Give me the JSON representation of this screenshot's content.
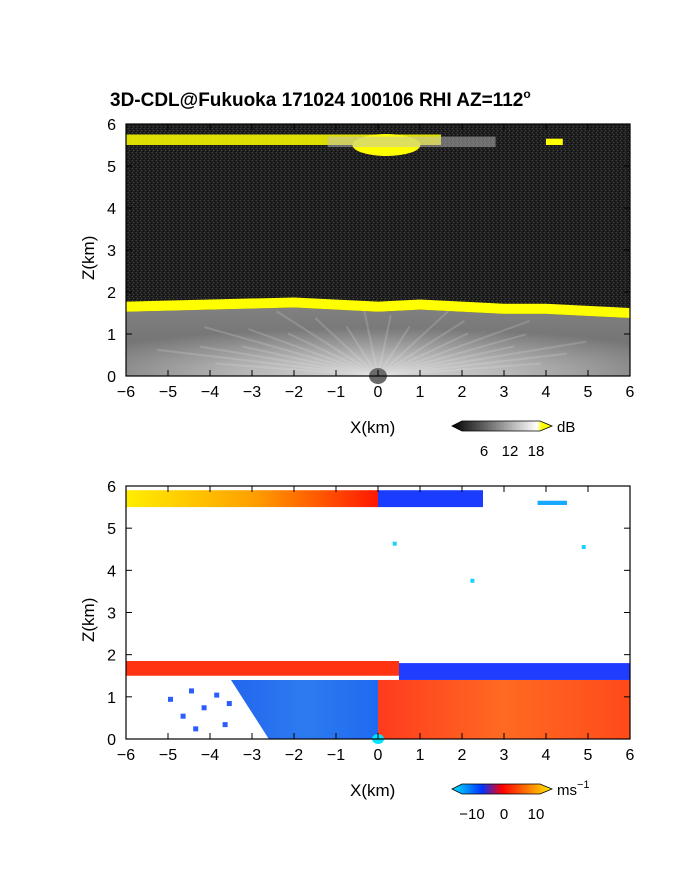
{
  "figure": {
    "title": "3D-CDL@Fukuoka 171024 100106 RHI AZ=112",
    "title_superscript": "o"
  },
  "chart_data": [
    {
      "type": "heatmap",
      "name": "backscatter",
      "xlabel": "X(km)",
      "ylabel": "Z(km)",
      "xlim": [
        -6,
        6
      ],
      "ylim": [
        0,
        6
      ],
      "xticks": [
        -6,
        -5,
        -4,
        -3,
        -2,
        -1,
        0,
        1,
        2,
        3,
        4,
        5,
        6
      ],
      "yticks": [
        0,
        1,
        2,
        3,
        4,
        5,
        6
      ],
      "colorbar": {
        "unit": "dB",
        "ticks": [
          6,
          12,
          18
        ],
        "range": [
          0,
          20
        ],
        "colors": [
          "#000000",
          "#ffffff",
          "#ffff00"
        ]
      },
      "layers": [
        {
          "feature": "cloud layer (yellow)",
          "z_bottom_km": 5.5,
          "z_top_km": 5.75,
          "x_from": -6,
          "x_to": 1.5,
          "peak_x": 0.2,
          "peak_z_bottom": 5.3
        },
        {
          "feature": "small cloud patch",
          "z_bottom_km": 5.5,
          "z_top_km": 5.65,
          "x_from": 4.0,
          "x_to": 4.4
        },
        {
          "feature": "boundary layer top (yellow)",
          "z_km_at_x": [
            [
              -6,
              1.65
            ],
            [
              -4,
              1.7
            ],
            [
              -2,
              1.75
            ],
            [
              0,
              1.65
            ],
            [
              1,
              1.7
            ],
            [
              2,
              1.65
            ],
            [
              3,
              1.6
            ],
            [
              4,
              1.6
            ],
            [
              5,
              1.55
            ],
            [
              6,
              1.5
            ]
          ]
        },
        {
          "feature": "aerosol layer (gray)",
          "z_bottom_km": 0,
          "z_top_km": 1.5,
          "x_from": -6,
          "x_to": 6
        }
      ]
    },
    {
      "type": "heatmap",
      "name": "doppler_velocity",
      "xlabel": "X(km)",
      "ylabel": "Z(km)",
      "xlim": [
        -6,
        6
      ],
      "ylim": [
        0,
        6
      ],
      "xticks": [
        -6,
        -5,
        -4,
        -3,
        -2,
        -1,
        0,
        1,
        2,
        3,
        4,
        5,
        6
      ],
      "yticks": [
        0,
        1,
        2,
        3,
        4,
        5,
        6
      ],
      "colorbar": {
        "unit": "ms",
        "unit_superscript": "−1",
        "ticks": [
          -10,
          0,
          10
        ],
        "ticks_text": [
          "−10",
          "0",
          "10"
        ],
        "range": [
          -15,
          15
        ],
        "colors": [
          "#00e5ff",
          "#0033ff",
          "#ff0000",
          "#ffee00"
        ]
      },
      "regions": [
        {
          "feature": "cloud layer, positive velocity",
          "x_from": -6,
          "x_to": 0,
          "z_bottom_km": 5.5,
          "z_top_km": 5.9,
          "velocity_ms": [
            12,
            2
          ]
        },
        {
          "feature": "cloud layer, negative velocity",
          "x_from": 0,
          "x_to": 2.5,
          "z_bottom_km": 5.5,
          "z_top_km": 5.9,
          "velocity_ms": -8
        },
        {
          "feature": "small patch",
          "x_from": 3.8,
          "x_to": 4.5,
          "z_bottom_km": 5.55,
          "z_top_km": 5.65,
          "velocity_ms": -12
        },
        {
          "feature": "PBL top, positive",
          "x_from": -6,
          "x_to": 0.5,
          "z_bottom_km": 1.5,
          "z_top_km": 1.85,
          "velocity_ms": 3
        },
        {
          "feature": "PBL top, negative",
          "x_from": 0.5,
          "x_to": 6,
          "z_bottom_km": 1.4,
          "z_top_km": 1.8,
          "velocity_ms": -7
        },
        {
          "feature": "boundary layer, negative",
          "x_from": -3.5,
          "x_to": 0,
          "z_bottom_km": 0,
          "z_top_km": 1.4,
          "velocity_ms": -7
        },
        {
          "feature": "boundary layer, positive",
          "x_from": 0,
          "x_to": 6,
          "z_bottom_km": 0,
          "z_top_km": 1.4,
          "velocity_ms": 3
        }
      ]
    }
  ]
}
